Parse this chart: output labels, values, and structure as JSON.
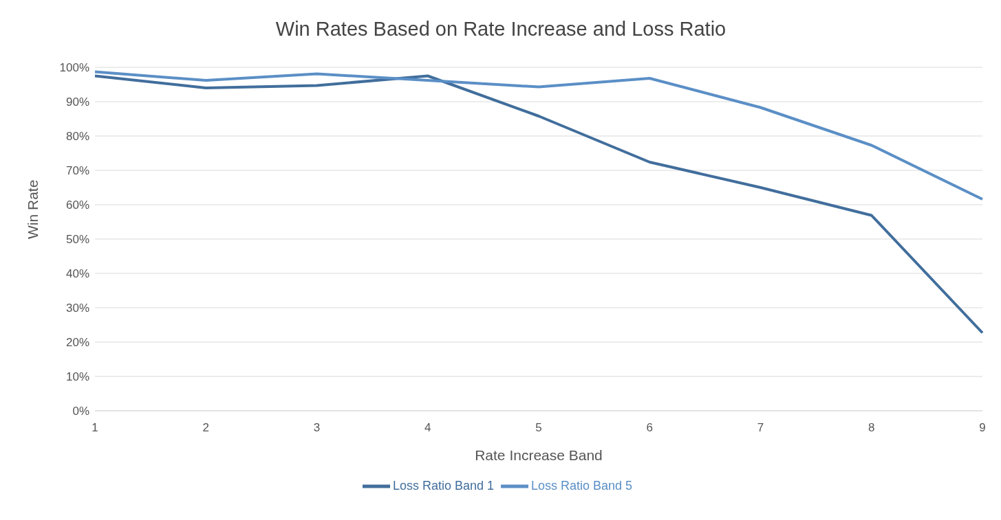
{
  "chart_data": {
    "type": "line",
    "title": "Win Rates Based on Rate Increase and Loss Ratio",
    "xlabel": "Rate Increase Band",
    "ylabel": "Win Rate",
    "categories": [
      "1",
      "2",
      "3",
      "4",
      "5",
      "6",
      "7",
      "8",
      "9"
    ],
    "series": [
      {
        "name": "Loss Ratio Band 1",
        "color": "#416e9c",
        "values": [
          97.5,
          94,
          94.7,
          97.5,
          85.8,
          72.4,
          65,
          56.9,
          22.7
        ]
      },
      {
        "name": "Loss Ratio Band 5",
        "color": "#5b8fc6",
        "values": [
          98.7,
          96.2,
          98.1,
          96.2,
          94.3,
          96.8,
          88.3,
          77.3,
          61.6
        ]
      }
    ],
    "ylim": [
      0,
      100
    ],
    "yticks": [
      {
        "value": 0,
        "label": "0%"
      },
      {
        "value": 10,
        "label": "10%"
      },
      {
        "value": 20,
        "label": "20%"
      },
      {
        "value": 30,
        "label": "30%"
      },
      {
        "value": 40,
        "label": "40%"
      },
      {
        "value": 50,
        "label": "50%"
      },
      {
        "value": 60,
        "label": "60%"
      },
      {
        "value": 70,
        "label": "70%"
      },
      {
        "value": 80,
        "label": "80%"
      },
      {
        "value": 90,
        "label": "90%"
      },
      {
        "value": 100,
        "label": "100%"
      }
    ],
    "grid": "y",
    "legend": "bottom",
    "marker": "none",
    "line_style": "solid"
  }
}
